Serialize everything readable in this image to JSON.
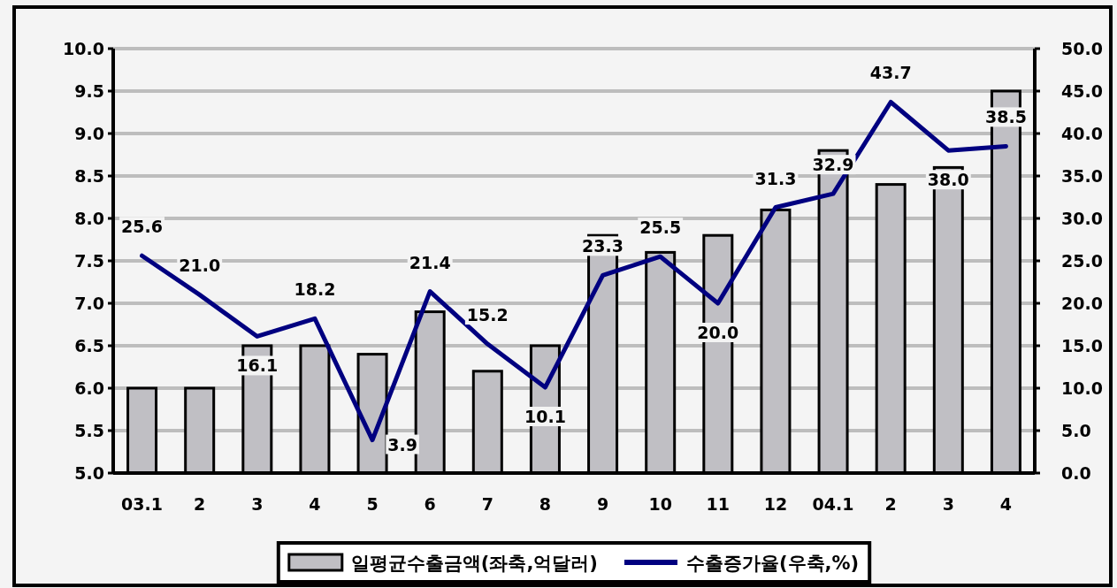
{
  "chart_data": {
    "type": "bar",
    "categories": [
      "03.1",
      "2",
      "3",
      "4",
      "5",
      "6",
      "7",
      "8",
      "9",
      "10",
      "11",
      "12",
      "04.1",
      "2",
      "3",
      "4"
    ],
    "series": [
      {
        "name": "일평균수출금액(좌축,억달러)",
        "color": "#c0bfc4",
        "values": [
          6.0,
          6.0,
          6.5,
          6.5,
          6.4,
          6.9,
          6.2,
          6.5,
          7.8,
          7.6,
          7.8,
          8.1,
          8.8,
          8.4,
          8.6,
          9.5
        ]
      },
      {
        "name": "수출증가율(우축,%)",
        "type": "line",
        "axis": "y2",
        "color": "#000080",
        "values": [
          25.6,
          21.0,
          16.1,
          18.2,
          3.9,
          21.4,
          15.2,
          10.1,
          23.3,
          25.5,
          20.0,
          31.3,
          32.9,
          43.7,
          38.0,
          38.5
        ],
        "value_labels": [
          "25.6",
          "21.0",
          "16.1",
          "18.2",
          "3.9",
          "21.4",
          "15.2",
          "10.1",
          "23.3",
          "25.5",
          "20.0",
          "31.3",
          "32.9",
          "43.7",
          "38.0",
          "38.5"
        ]
      }
    ],
    "ylim": [
      5,
      10
    ],
    "yticks": [
      {
        "value": 5,
        "label": "5.0"
      },
      {
        "value": 5.5,
        "label": "5.5"
      },
      {
        "value": 6,
        "label": "6.0"
      },
      {
        "value": 6.5,
        "label": "6.5"
      },
      {
        "value": 7,
        "label": "7.0"
      },
      {
        "value": 7.5,
        "label": "7.5"
      },
      {
        "value": 8,
        "label": "8.0"
      },
      {
        "value": 8.5,
        "label": "8.5"
      },
      {
        "value": 9,
        "label": "9.0"
      },
      {
        "value": 9.5,
        "label": "9.5"
      },
      {
        "value": 10,
        "label": "10.0"
      }
    ],
    "y2lim": [
      0,
      50
    ],
    "y2ticks": [
      {
        "value": 0,
        "label": "0.0"
      },
      {
        "value": 5,
        "label": "5.0"
      },
      {
        "value": 10,
        "label": "10.0"
      },
      {
        "value": 15,
        "label": "15.0"
      },
      {
        "value": 20,
        "label": "20.0"
      },
      {
        "value": 25,
        "label": "25.0"
      },
      {
        "value": 30,
        "label": "30.0"
      },
      {
        "value": 35,
        "label": "35.0"
      },
      {
        "value": 40,
        "label": "40.0"
      },
      {
        "value": 45,
        "label": "45.0"
      },
      {
        "value": 50,
        "label": "50.0"
      }
    ],
    "grid": "y",
    "legend": "bottom"
  }
}
